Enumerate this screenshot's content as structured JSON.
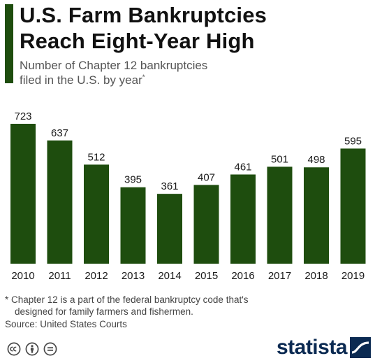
{
  "header": {
    "title": "U.S. Farm Bankruptcies\nReach Eight-Year High",
    "subtitle": "Number of Chapter 12 bankruptcies\nfiled in the U.S. by year",
    "subtitle_mark": "*"
  },
  "chart_data": {
    "type": "bar",
    "title": "U.S. Farm Bankruptcies Reach Eight-Year High",
    "subtitle": "Number of Chapter 12 bankruptcies filed in the U.S. by year*",
    "categories": [
      "2010",
      "2011",
      "2012",
      "2013",
      "2014",
      "2015",
      "2016",
      "2017",
      "2018",
      "2019"
    ],
    "values": [
      723,
      637,
      512,
      395,
      361,
      407,
      461,
      501,
      498,
      595
    ],
    "xlabel": "",
    "ylabel": "",
    "ylim": [
      0,
      723
    ],
    "grid": false,
    "legend": "none",
    "data_labels": true,
    "bar_color": "#1e4d0e"
  },
  "footer": {
    "footnote_line1": "* Chapter 12 is a part of the federal bankruptcy code that's",
    "footnote_line2": "designed for family farmers and fishermen.",
    "source": "Source: United States Courts",
    "license_icons": [
      "creative-commons-icon",
      "attribution-icon",
      "no-derivatives-icon"
    ],
    "brand": "statista"
  },
  "colors": {
    "accent": "#1e4d0e",
    "brand": "#0b2a52"
  }
}
